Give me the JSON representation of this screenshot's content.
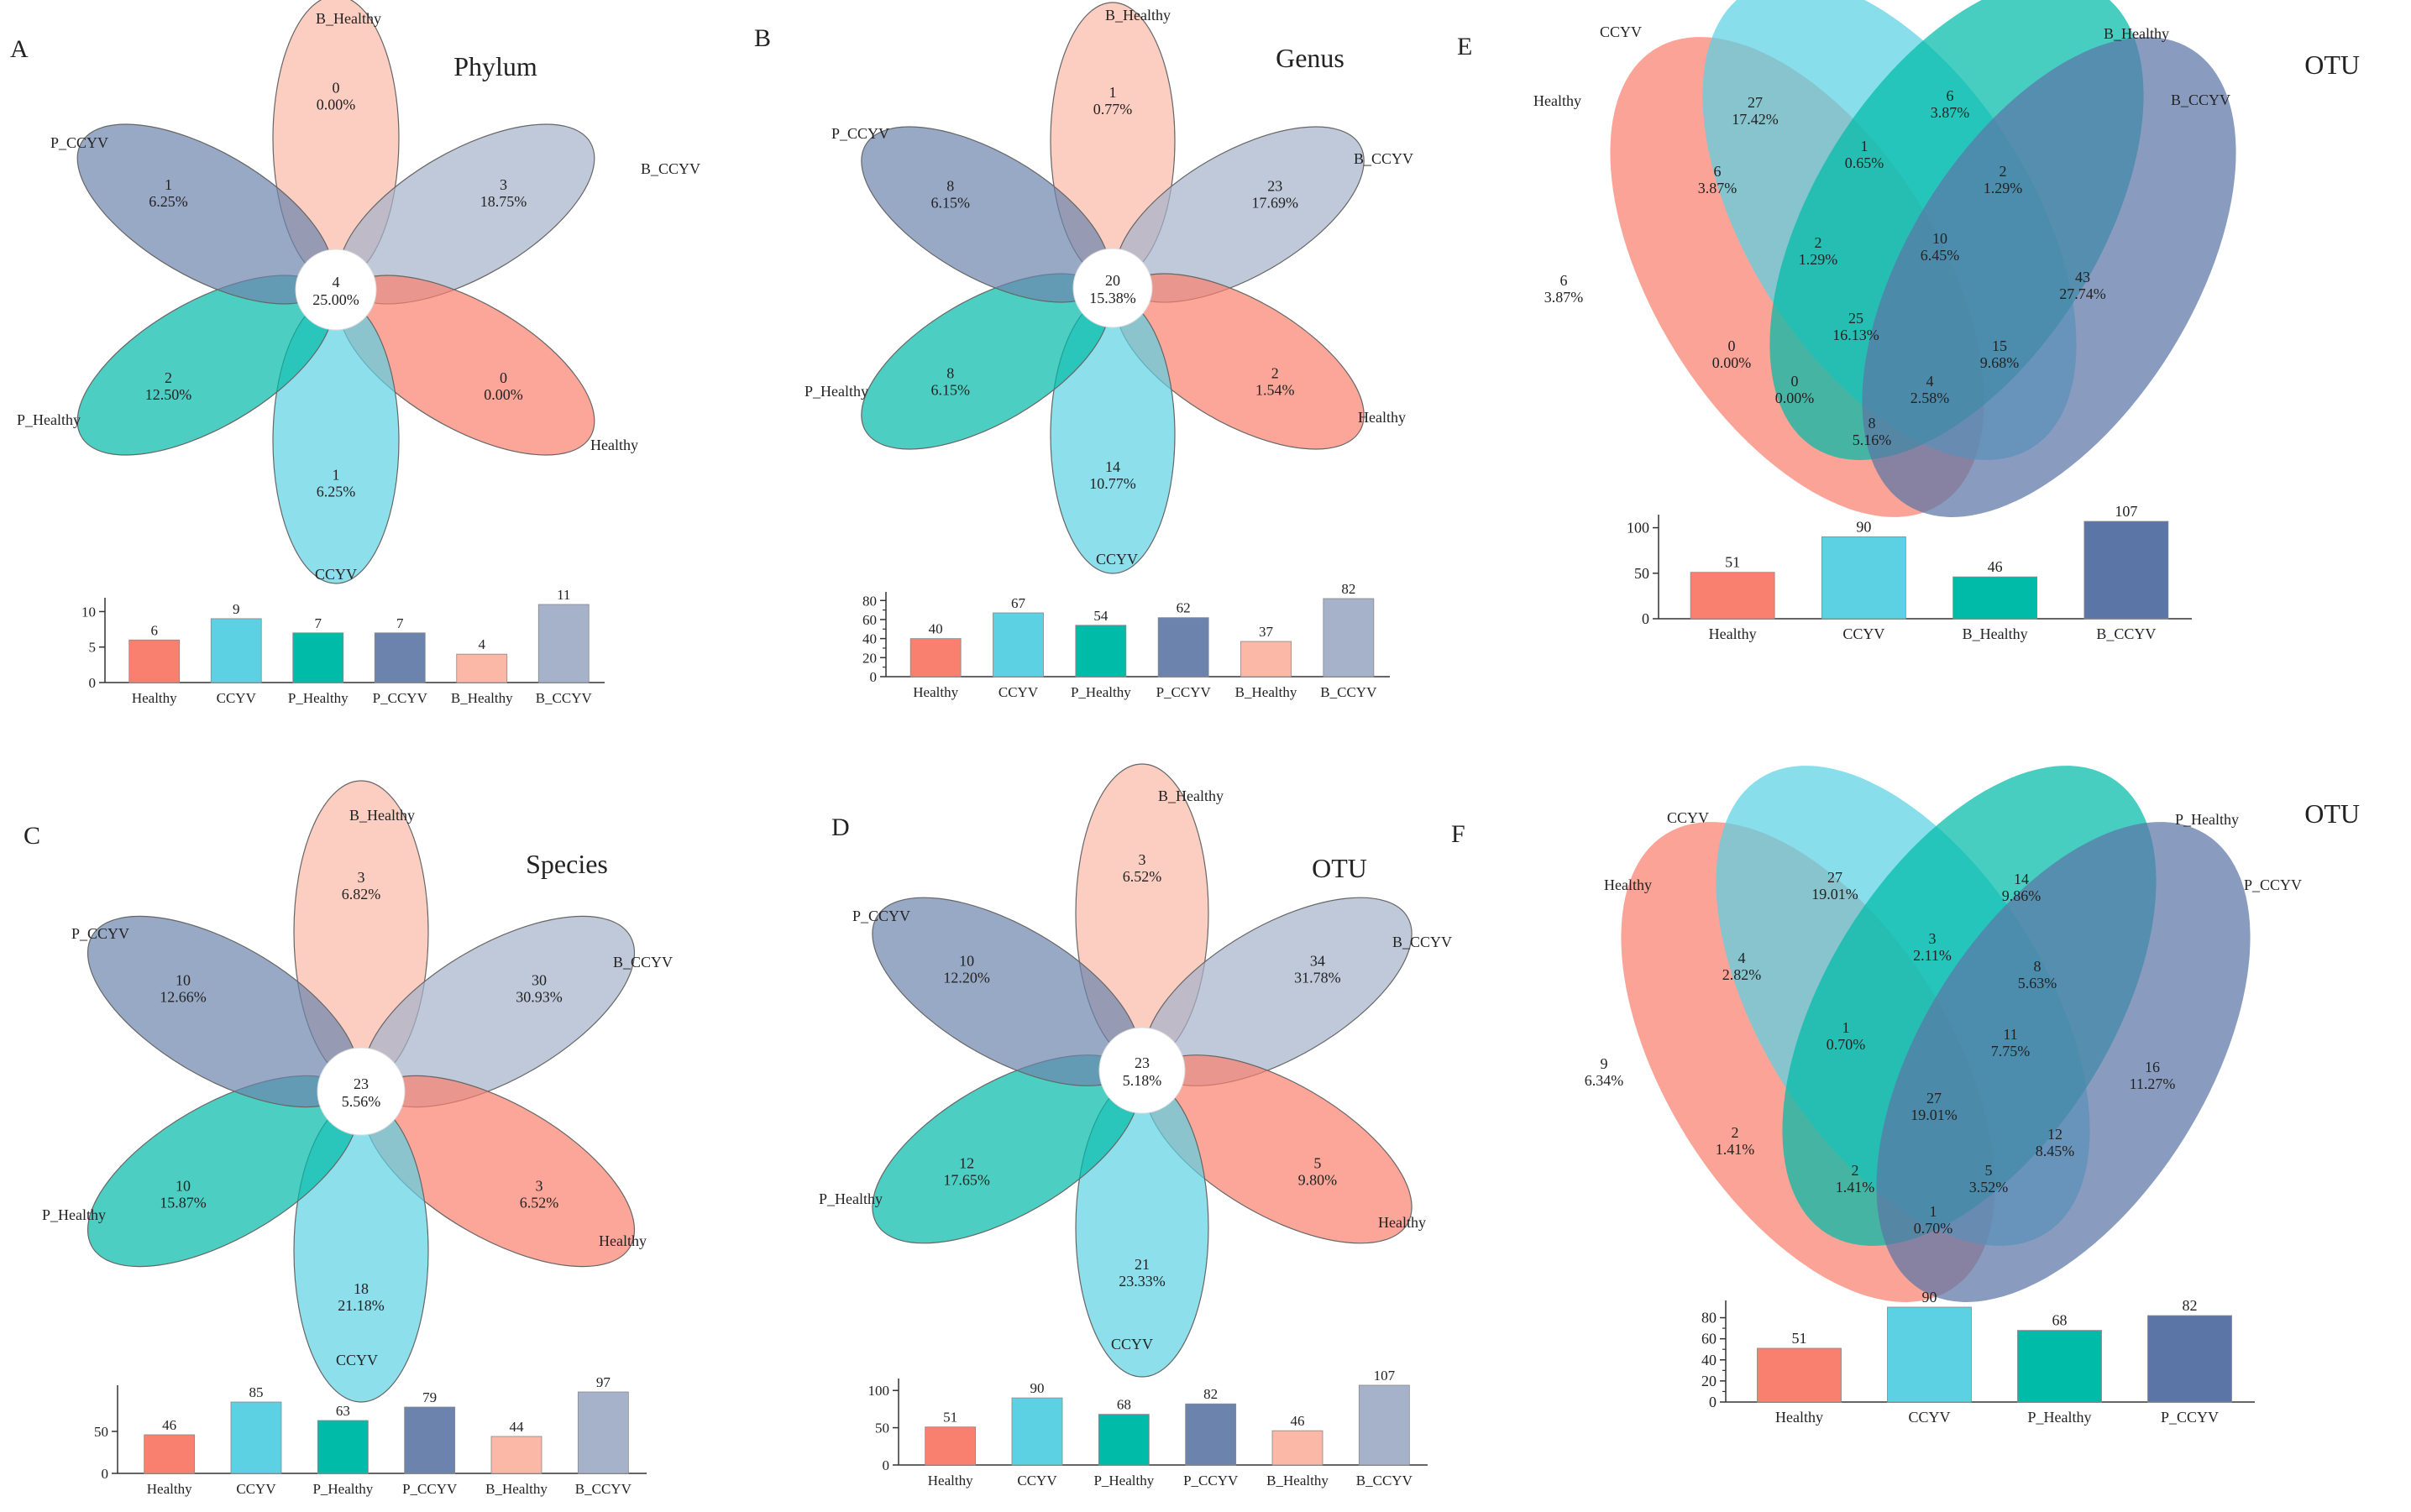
{
  "colors": {
    "healthy": "#f9806e",
    "ccyv": "#5bd1e3",
    "p_healthy": "#00bba8",
    "p_ccyv": "#6c84ad",
    "b_healthy": "#fbb8a6",
    "b_ccyv": "#a5b2ca",
    "e_b_ccyv": "#5b76a6",
    "text": "#222222",
    "axis": "#333333"
  },
  "chart_data": [
    {
      "panel": "A",
      "type": "flower",
      "title": "Phylum",
      "center": {
        "count": "4",
        "percent": "25.00%"
      },
      "petals": [
        {
          "group": "B_Healthy",
          "count": "0",
          "percent": "0.00%",
          "color_key": "b_healthy"
        },
        {
          "group": "B_CCYV",
          "count": "3",
          "percent": "18.75%",
          "color_key": "b_ccyv"
        },
        {
          "group": "Healthy",
          "count": "0",
          "percent": "0.00%",
          "color_key": "healthy"
        },
        {
          "group": "CCYV",
          "count": "1",
          "percent": "6.25%",
          "color_key": "ccyv"
        },
        {
          "group": "P_Healthy",
          "count": "2",
          "percent": "12.50%",
          "color_key": "p_healthy"
        },
        {
          "group": "P_CCYV",
          "count": "1",
          "percent": "6.25%",
          "color_key": "p_ccyv"
        }
      ],
      "bar": {
        "type": "bar",
        "categories": [
          "Healthy",
          "CCYV",
          "P_Healthy",
          "P_CCYV",
          "B_Healthy",
          "B_CCYV"
        ],
        "values": [
          6,
          9,
          7,
          7,
          4,
          11
        ],
        "color_keys": [
          "healthy",
          "ccyv",
          "p_healthy",
          "p_ccyv",
          "b_healthy",
          "b_ccyv"
        ],
        "ylim": [
          0,
          11
        ],
        "yticks": [
          0,
          5,
          10
        ]
      }
    },
    {
      "panel": "B",
      "type": "flower",
      "title": "Genus",
      "center": {
        "count": "20",
        "percent": "15.38%"
      },
      "petals": [
        {
          "group": "B_Healthy",
          "count": "1",
          "percent": "0.77%",
          "color_key": "b_healthy"
        },
        {
          "group": "B_CCYV",
          "count": "23",
          "percent": "17.69%",
          "color_key": "b_ccyv"
        },
        {
          "group": "Healthy",
          "count": "2",
          "percent": "1.54%",
          "color_key": "healthy"
        },
        {
          "group": "CCYV",
          "count": "14",
          "percent": "10.77%",
          "color_key": "ccyv"
        },
        {
          "group": "P_Healthy",
          "count": "8",
          "percent": "6.15%",
          "color_key": "p_healthy"
        },
        {
          "group": "P_CCYV",
          "count": "8",
          "percent": "6.15%",
          "color_key": "p_ccyv"
        }
      ],
      "bar": {
        "type": "bar",
        "categories": [
          "Healthy",
          "CCYV",
          "P_Healthy",
          "P_CCYV",
          "B_Healthy",
          "B_CCYV"
        ],
        "values": [
          40,
          67,
          54,
          62,
          37,
          82
        ],
        "color_keys": [
          "healthy",
          "ccyv",
          "p_healthy",
          "p_ccyv",
          "b_healthy",
          "b_ccyv"
        ],
        "ylim": [
          0,
          82
        ],
        "yticks": [
          0,
          20,
          40,
          60,
          80
        ],
        "minor_yticks": [
          10,
          30,
          50,
          70
        ]
      }
    },
    {
      "panel": "C",
      "type": "flower",
      "title": "Species",
      "center": {
        "count": "23",
        "percent": "5.56%"
      },
      "petals": [
        {
          "group": "B_Healthy",
          "count": "3",
          "percent": "6.82%",
          "color_key": "b_healthy"
        },
        {
          "group": "B_CCYV",
          "count": "30",
          "percent": "30.93%",
          "color_key": "b_ccyv"
        },
        {
          "group": "Healthy",
          "count": "3",
          "percent": "6.52%",
          "color_key": "healthy"
        },
        {
          "group": "CCYV",
          "count": "18",
          "percent": "21.18%",
          "color_key": "ccyv"
        },
        {
          "group": "P_Healthy",
          "count": "10",
          "percent": "15.87%",
          "color_key": "p_healthy"
        },
        {
          "group": "P_CCYV",
          "count": "10",
          "percent": "12.66%",
          "color_key": "p_ccyv"
        }
      ],
      "bar": {
        "type": "bar",
        "categories": [
          "Healthy",
          "CCYV",
          "P_Healthy",
          "P_CCYV",
          "B_Healthy",
          "B_CCYV"
        ],
        "values": [
          46,
          85,
          63,
          79,
          44,
          97
        ],
        "color_keys": [
          "healthy",
          "ccyv",
          "p_healthy",
          "p_ccyv",
          "b_healthy",
          "b_ccyv"
        ],
        "ylim": [
          0,
          97
        ],
        "yticks": [
          0,
          50
        ]
      }
    },
    {
      "panel": "D",
      "type": "flower",
      "title": "OTU",
      "center": {
        "count": "23",
        "percent": "5.18%"
      },
      "petals": [
        {
          "group": "B_Healthy",
          "count": "3",
          "percent": "6.52%",
          "color_key": "b_healthy"
        },
        {
          "group": "B_CCYV",
          "count": "34",
          "percent": "31.78%",
          "color_key": "b_ccyv"
        },
        {
          "group": "Healthy",
          "count": "5",
          "percent": "9.80%",
          "color_key": "healthy"
        },
        {
          "group": "CCYV",
          "count": "21",
          "percent": "23.33%",
          "color_key": "ccyv"
        },
        {
          "group": "P_Healthy",
          "count": "12",
          "percent": "17.65%",
          "color_key": "p_healthy"
        },
        {
          "group": "P_CCYV",
          "count": "10",
          "percent": "12.20%",
          "color_key": "p_ccyv"
        }
      ],
      "bar": {
        "type": "bar",
        "categories": [
          "Healthy",
          "CCYV",
          "P_Healthy",
          "P_CCYV",
          "B_Healthy",
          "B_CCYV"
        ],
        "values": [
          51,
          90,
          68,
          82,
          46,
          107
        ],
        "color_keys": [
          "healthy",
          "ccyv",
          "p_healthy",
          "p_ccyv",
          "b_healthy",
          "b_ccyv"
        ],
        "ylim": [
          0,
          107
        ],
        "yticks": [
          0,
          50,
          100
        ]
      }
    },
    {
      "panel": "E",
      "type": "venn",
      "title": "OTU",
      "sets": [
        {
          "name": "Healthy",
          "color_key": "healthy"
        },
        {
          "name": "CCYV",
          "color_key": "ccyv"
        },
        {
          "name": "B_Healthy",
          "color_key": "p_healthy"
        },
        {
          "name": "B_CCYV",
          "color_key": "e_b_ccyv"
        }
      ],
      "regions": [
        {
          "count": "27",
          "percent": "17.42%"
        },
        {
          "count": "6",
          "percent": "3.87%"
        },
        {
          "count": "6",
          "percent": "3.87%"
        },
        {
          "count": "1",
          "percent": "0.65%"
        },
        {
          "count": "2",
          "percent": "1.29%"
        },
        {
          "count": "6",
          "percent": "3.87%"
        },
        {
          "count": "2",
          "percent": "1.29%"
        },
        {
          "count": "10",
          "percent": "6.45%"
        },
        {
          "count": "43",
          "percent": "27.74%"
        },
        {
          "count": "25",
          "percent": "16.13%"
        },
        {
          "count": "0",
          "percent": "0.00%"
        },
        {
          "count": "15",
          "percent": "9.68%"
        },
        {
          "count": "0",
          "percent": "0.00%"
        },
        {
          "count": "4",
          "percent": "2.58%"
        },
        {
          "count": "8",
          "percent": "5.16%"
        }
      ],
      "bar": {
        "type": "bar",
        "categories": [
          "Healthy",
          "CCYV",
          "B_Healthy",
          "B_CCYV"
        ],
        "values": [
          51,
          90,
          46,
          107
        ],
        "color_keys": [
          "healthy",
          "ccyv",
          "p_healthy",
          "e_b_ccyv"
        ],
        "ylim": [
          0,
          107
        ],
        "yticks": [
          0,
          50,
          100
        ]
      }
    },
    {
      "panel": "F",
      "type": "venn",
      "title": "OTU",
      "sets": [
        {
          "name": "Healthy",
          "color_key": "healthy"
        },
        {
          "name": "CCYV",
          "color_key": "ccyv"
        },
        {
          "name": "P_Healthy",
          "color_key": "p_healthy"
        },
        {
          "name": "P_CCYV",
          "color_key": "e_b_ccyv"
        }
      ],
      "regions": [
        {
          "count": "27",
          "percent": "19.01%"
        },
        {
          "count": "14",
          "percent": "9.86%"
        },
        {
          "count": "4",
          "percent": "2.82%"
        },
        {
          "count": "3",
          "percent": "2.11%"
        },
        {
          "count": "8",
          "percent": "5.63%"
        },
        {
          "count": "9",
          "percent": "6.34%"
        },
        {
          "count": "1",
          "percent": "0.70%"
        },
        {
          "count": "11",
          "percent": "7.75%"
        },
        {
          "count": "16",
          "percent": "11.27%"
        },
        {
          "count": "27",
          "percent": "19.01%"
        },
        {
          "count": "2",
          "percent": "1.41%"
        },
        {
          "count": "12",
          "percent": "8.45%"
        },
        {
          "count": "2",
          "percent": "1.41%"
        },
        {
          "count": "5",
          "percent": "3.52%"
        },
        {
          "count": "1",
          "percent": "0.70%"
        }
      ],
      "bar": {
        "type": "bar",
        "categories": [
          "Healthy",
          "CCYV",
          "P_Healthy",
          "P_CCYV"
        ],
        "values": [
          51,
          90,
          68,
          82
        ],
        "color_keys": [
          "healthy",
          "ccyv",
          "p_healthy",
          "e_b_ccyv"
        ],
        "ylim": [
          0,
          90
        ],
        "yticks": [
          0,
          20,
          40,
          60,
          80
        ],
        "minor_yticks": [
          10,
          30,
          50,
          70
        ]
      }
    }
  ]
}
